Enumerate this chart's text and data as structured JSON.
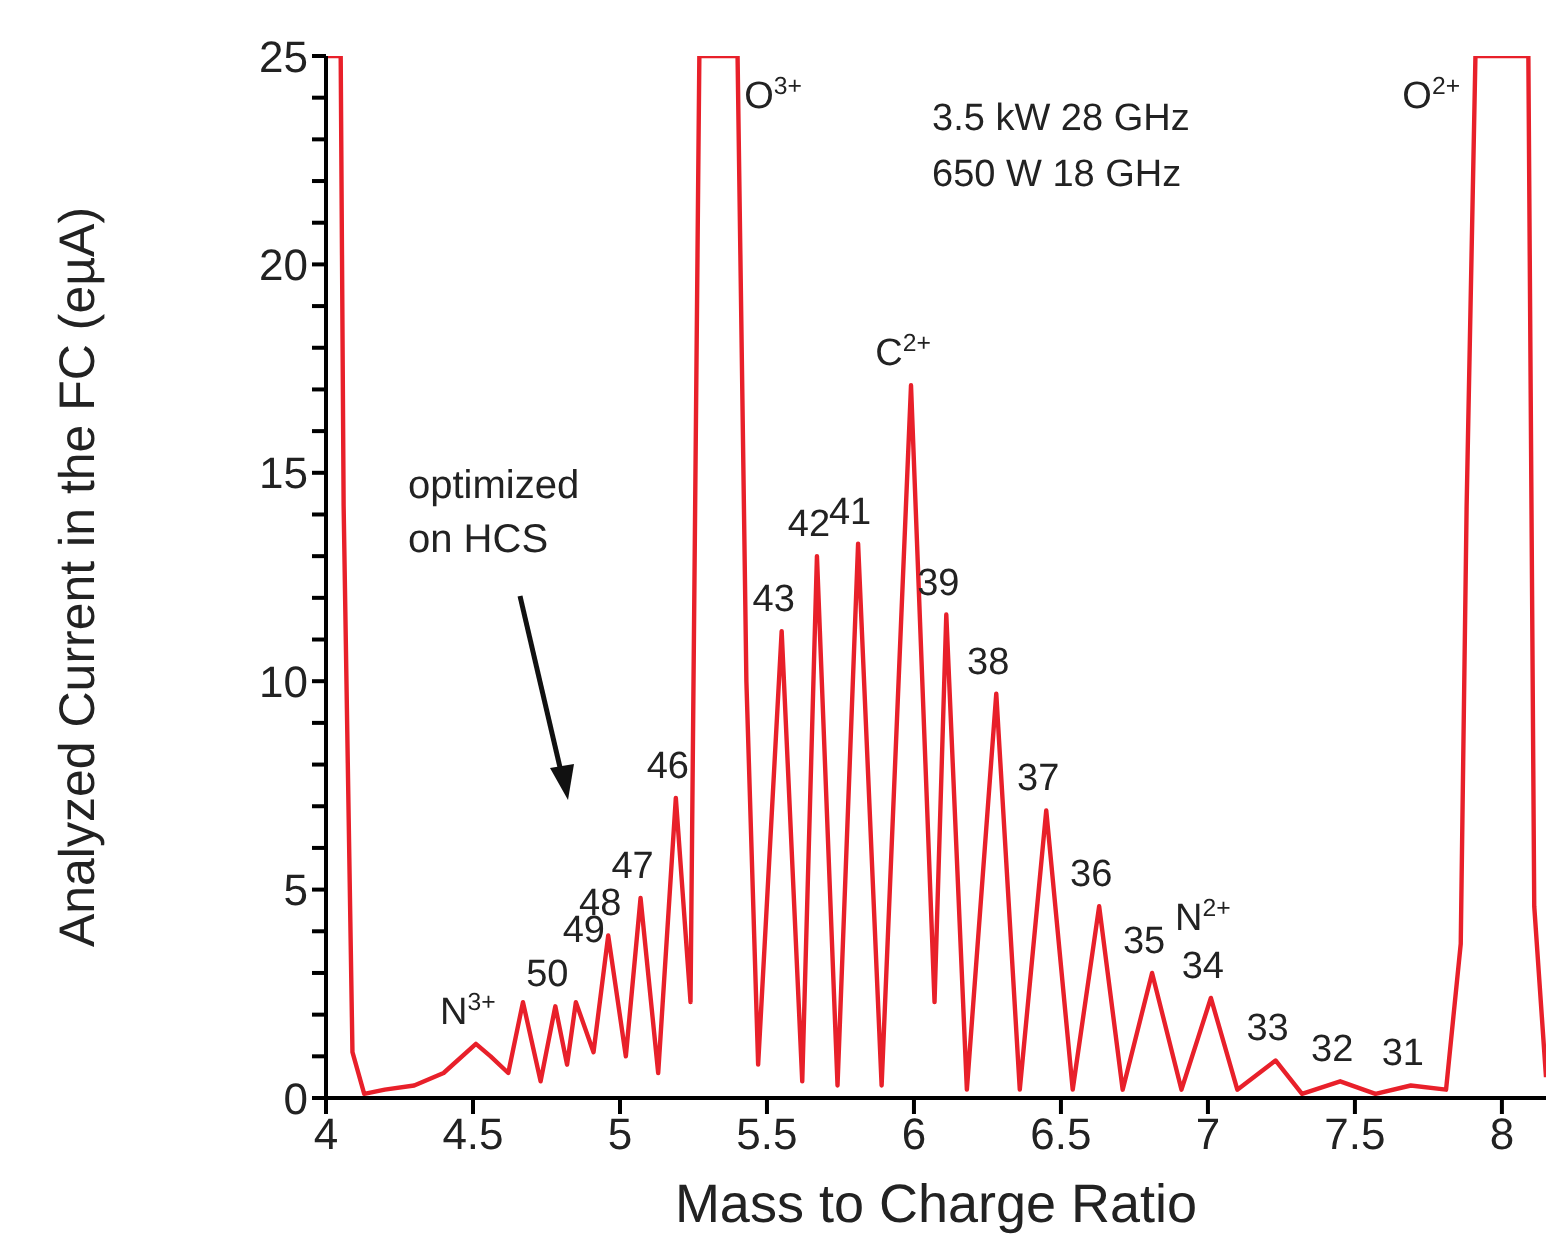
{
  "chart_data": {
    "type": "line",
    "xlabel": "Mass to Charge Ratio",
    "ylabel": "Analyzed Current in the FC (eµA)",
    "xlim": [
      4,
      8.15
    ],
    "xticks": [
      4,
      4.5,
      5,
      5.5,
      6,
      6.5,
      7,
      7.5,
      8
    ],
    "ylim": [
      0,
      25
    ],
    "yticks": [
      0,
      {
        "value": 1,
        "label": null
      },
      {
        "value": 2,
        "label": null
      },
      {
        "value": 3,
        "label": null
      },
      {
        "value": 4,
        "label": null
      },
      5,
      {
        "value": 6,
        "label": null
      },
      {
        "value": 7,
        "label": null
      },
      {
        "value": 8,
        "label": null
      },
      {
        "value": 9,
        "label": null
      },
      10,
      {
        "value": 11,
        "label": null
      },
      {
        "value": 12,
        "label": null
      },
      {
        "value": 13,
        "label": null
      },
      {
        "value": 14,
        "label": null
      },
      15,
      {
        "value": 16,
        "label": null
      },
      {
        "value": 17,
        "label": null
      },
      {
        "value": 18,
        "label": null
      },
      {
        "value": 19,
        "label": null
      },
      20,
      {
        "value": 21,
        "label": null
      },
      {
        "value": 22,
        "label": null
      },
      {
        "value": 23,
        "label": null
      },
      {
        "value": 24,
        "label": null
      },
      25
    ],
    "marker": "none",
    "line_style": "solid",
    "x": [
      4.0,
      4.05,
      4.06,
      4.09,
      4.13,
      4.2,
      4.3,
      4.4,
      4.51,
      4.56,
      4.62,
      4.67,
      4.73,
      4.78,
      4.82,
      4.85,
      4.91,
      4.96,
      5.02,
      5.07,
      5.13,
      5.19,
      5.24,
      5.27,
      5.4,
      5.43,
      5.47,
      5.55,
      5.62,
      5.67,
      5.74,
      5.81,
      5.89,
      5.99,
      6.07,
      6.11,
      6.18,
      6.28,
      6.36,
      6.45,
      6.54,
      6.63,
      6.71,
      6.81,
      6.91,
      7.01,
      7.1,
      7.23,
      7.32,
      7.45,
      7.57,
      7.69,
      7.81,
      7.86,
      7.88,
      7.91,
      8.09,
      8.11,
      8.15
    ],
    "series": [
      {
        "color": "#e8202a",
        "values": [
          25,
          25,
          14.2,
          1.1,
          0.1,
          0.2,
          0.3,
          0.6,
          1.3,
          1.0,
          0.6,
          2.3,
          0.4,
          2.2,
          0.8,
          2.3,
          1.1,
          3.9,
          1.0,
          4.8,
          0.6,
          7.2,
          2.3,
          25,
          25,
          10,
          0.8,
          11.2,
          0.4,
          13.0,
          0.3,
          13.3,
          0.3,
          17.1,
          2.3,
          11.6,
          0.2,
          9.7,
          0.2,
          6.9,
          0.2,
          4.6,
          0.2,
          3.0,
          0.2,
          2.4,
          0.2,
          0.9,
          0.1,
          0.4,
          0.1,
          0.3,
          0.2,
          3.7,
          14.2,
          25,
          25,
          4.6,
          0.5
        ]
      }
    ],
    "annotations": [
      {
        "text": "N$^{3+}$",
        "x": 4.51,
        "y": 1.3
      },
      {
        "text": "50",
        "x": 4.78,
        "y": 2.2
      },
      {
        "text": "49",
        "x": 4.85,
        "y": 2.3
      },
      {
        "text": "48",
        "x": 4.96,
        "y": 3.9
      },
      {
        "text": "47",
        "x": 5.07,
        "y": 4.8
      },
      {
        "text": "46",
        "x": 5.19,
        "y": 7.2
      },
      {
        "text": "O$^{3+}$",
        "x": 5.33,
        "y": 25
      },
      {
        "text": "43",
        "x": 5.55,
        "y": 11.2
      },
      {
        "text": "42",
        "x": 5.67,
        "y": 13.0
      },
      {
        "text": "41",
        "x": 5.81,
        "y": 13.3
      },
      {
        "text": "C$^{2+}$",
        "x": 5.99,
        "y": 17.1
      },
      {
        "text": "39",
        "x": 6.11,
        "y": 11.6
      },
      {
        "text": "38",
        "x": 6.28,
        "y": 9.7
      },
      {
        "text": "37",
        "x": 6.45,
        "y": 6.9
      },
      {
        "text": "36",
        "x": 6.63,
        "y": 4.6
      },
      {
        "text": "35",
        "x": 6.81,
        "y": 3.0
      },
      {
        "text": "34",
        "x": 7.01,
        "y": 2.4
      },
      {
        "text": "N$^{2+}$",
        "x": 7.01,
        "y": 2.4
      },
      {
        "text": "33",
        "x": 7.23,
        "y": 0.9
      },
      {
        "text": "32",
        "x": 7.45,
        "y": 0.4
      },
      {
        "text": "31",
        "x": 7.69,
        "y": 0.3
      },
      {
        "text": "O$^{2+}$",
        "x": 7.95,
        "y": 25
      },
      "optimized on HCS",
      "3.5 kW 28 GHz",
      "650 W 18 GHz"
    ]
  }
}
